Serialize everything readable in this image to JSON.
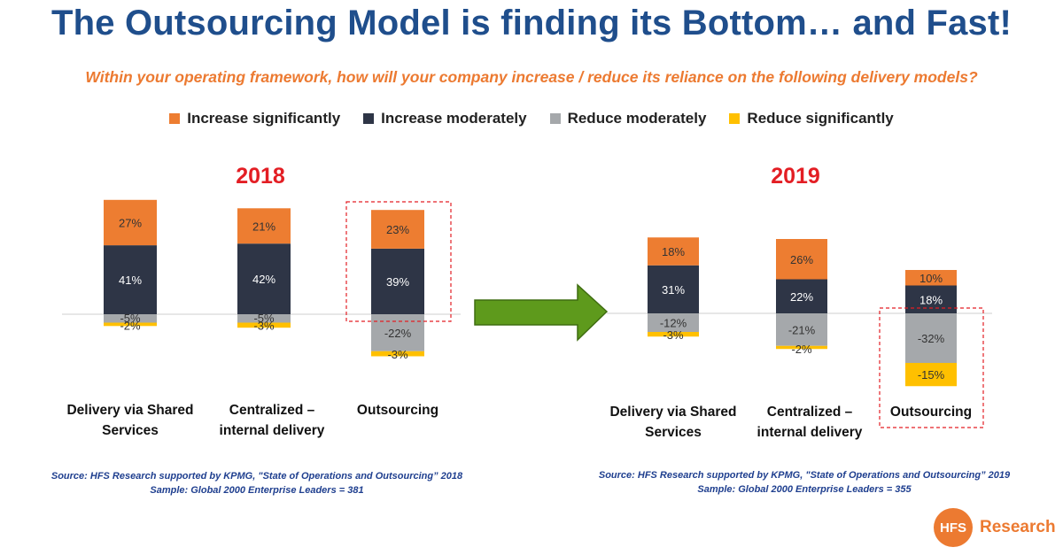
{
  "header": {
    "title": "The Outsourcing Model is finding its Bottom… and Fast!",
    "subtitle": "Within your operating framework, how will your company increase / reduce its reliance on the following delivery models?"
  },
  "legend": [
    {
      "label": "Increase significantly",
      "color": "#ed7d31"
    },
    {
      "label": "Increase moderately",
      "color": "#2e3546"
    },
    {
      "label": "Reduce moderately",
      "color": "#a5a8ab"
    },
    {
      "label": "Reduce significantly",
      "color": "#ffc000"
    }
  ],
  "chart_data": [
    {
      "type": "bar",
      "title": "2018",
      "categories": [
        "Delivery via Shared Services",
        "Centralized – internal delivery",
        "Outsourcing"
      ],
      "series": [
        {
          "name": "Increase significantly",
          "values": [
            27,
            21,
            23
          ]
        },
        {
          "name": "Increase moderately",
          "values": [
            41,
            42,
            39
          ]
        },
        {
          "name": "Reduce moderately",
          "values": [
            -5,
            -5,
            -22
          ]
        },
        {
          "name": "Reduce significantly",
          "values": [
            -2,
            -3,
            -3
          ]
        }
      ],
      "highlight": "Outsourcing increase"
    },
    {
      "type": "bar",
      "title": "2019",
      "categories": [
        "Delivery via Shared Services",
        "Centralized – internal delivery",
        "Outsourcing"
      ],
      "series": [
        {
          "name": "Increase significantly",
          "values": [
            18,
            26,
            10
          ]
        },
        {
          "name": "Increase moderately",
          "values": [
            31,
            22,
            18
          ]
        },
        {
          "name": "Reduce moderately",
          "values": [
            -12,
            -21,
            -32
          ]
        },
        {
          "name": "Reduce significantly",
          "values": [
            -3,
            -2,
            -15
          ]
        }
      ],
      "highlight": "Outsourcing reduce"
    }
  ],
  "sources": [
    {
      "line1": "Source: HFS Research supported by KPMG, \"State of Operations and Outsourcing” 2018",
      "line2": "Sample: Global 2000 Enterprise Leaders = 381"
    },
    {
      "line1": "Source: HFS Research supported by KPMG, \"State of Operations and Outsourcing” 2019",
      "line2": "Sample: Global 2000 Enterprise Leaders = 355"
    }
  ],
  "logo": {
    "mark": "HFS",
    "text": "Research"
  },
  "colors": {
    "title": "#1f4e8c",
    "subtitle": "#ec7a31",
    "year": "#e31e24",
    "arrow": "#5e9a1c",
    "highlight": "#e31e24"
  }
}
